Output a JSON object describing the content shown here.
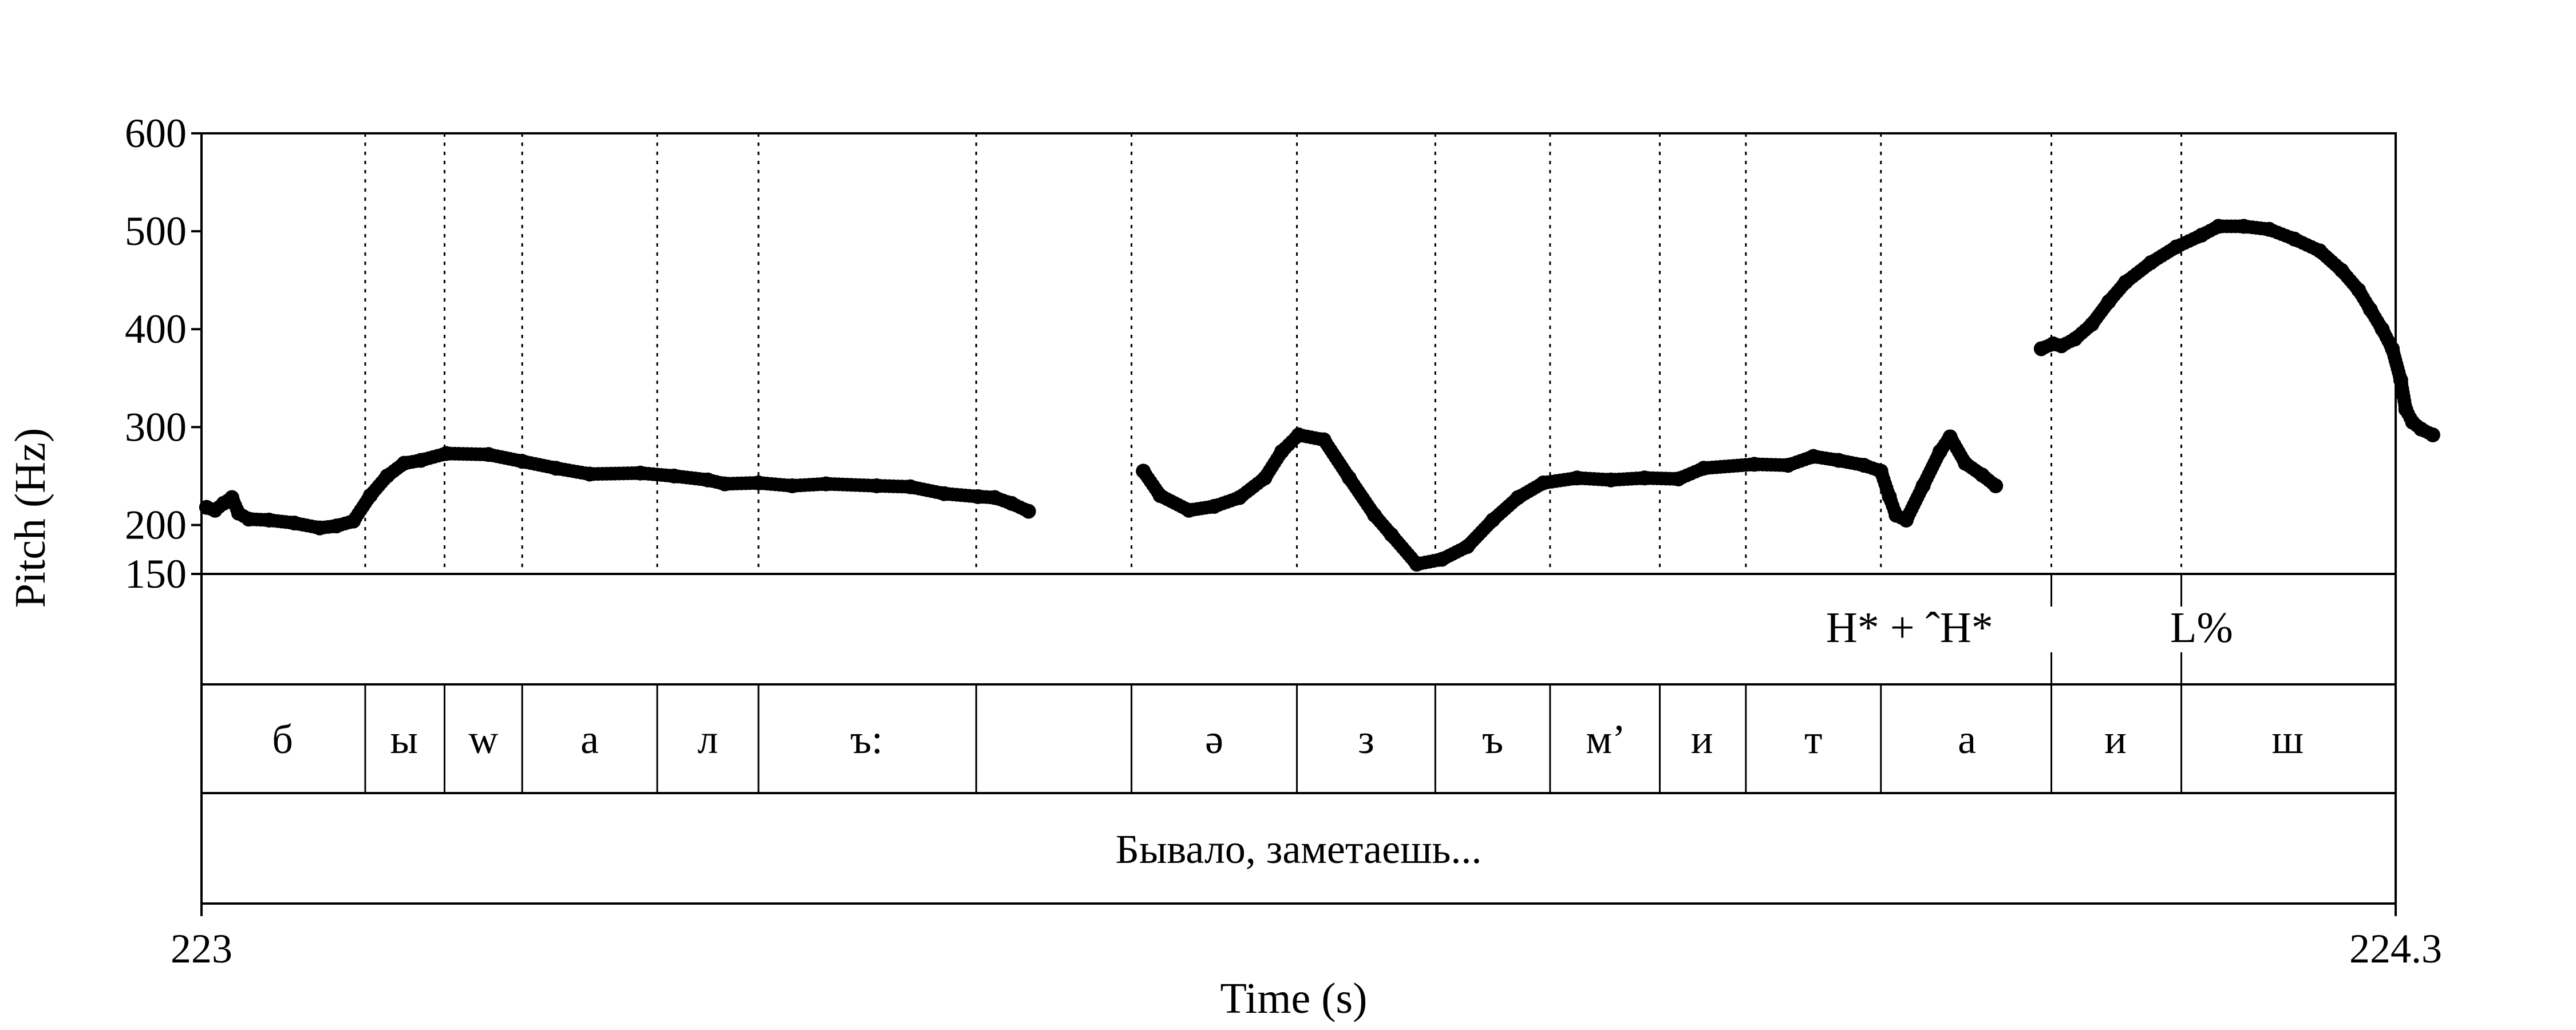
{
  "chart_data": {
    "type": "scatter",
    "title": "",
    "xlabel": "Time (s)",
    "ylabel": "Pitch (Hz)",
    "xlim": [
      223,
      224.3
    ],
    "ylim": [
      150,
      600
    ],
    "x_tick_labels": [
      "223",
      "224.3"
    ],
    "y_ticks": [
      150,
      200,
      300,
      400,
      500,
      600
    ],
    "y_tick_labels": [
      "150",
      "200",
      "300",
      "400",
      "500",
      "600"
    ],
    "grid": "dotted vertical lines at segment boundaries",
    "legend": "none",
    "colors": {
      "points": "#000000",
      "axes": "#000000",
      "background": "#ffffff"
    },
    "series": [
      {
        "values": [
          [
            223.003,
            218
          ],
          [
            223.008,
            215
          ],
          [
            223.013,
            222
          ],
          [
            223.018,
            228
          ],
          [
            223.022,
            212
          ],
          [
            223.028,
            206
          ],
          [
            223.04,
            205
          ],
          [
            223.055,
            202
          ],
          [
            223.07,
            197
          ],
          [
            223.08,
            199
          ],
          [
            223.09,
            204
          ],
          [
            223.1,
            230
          ],
          [
            223.11,
            250
          ],
          [
            223.12,
            263
          ],
          [
            223.13,
            266
          ],
          [
            223.145,
            273
          ],
          [
            223.17,
            272
          ],
          [
            223.19,
            265
          ],
          [
            223.21,
            258
          ],
          [
            223.23,
            252
          ],
          [
            223.26,
            253
          ],
          [
            223.28,
            250
          ],
          [
            223.3,
            246
          ],
          [
            223.31,
            242
          ],
          [
            223.33,
            243
          ],
          [
            223.35,
            240
          ],
          [
            223.37,
            242
          ],
          [
            223.4,
            240
          ],
          [
            223.42,
            239
          ],
          [
            223.44,
            232
          ],
          [
            223.46,
            229
          ],
          [
            223.47,
            228
          ],
          [
            223.48,
            222
          ],
          [
            223.49,
            214
          ]
        ]
      },
      {
        "values": [
          [
            223.558,
            255
          ],
          [
            223.568,
            230
          ],
          [
            223.585,
            215
          ],
          [
            223.6,
            219
          ],
          [
            223.615,
            228
          ],
          [
            223.63,
            248
          ],
          [
            223.64,
            275
          ],
          [
            223.65,
            292
          ],
          [
            223.665,
            287
          ],
          [
            223.68,
            248
          ],
          [
            223.695,
            210
          ],
          [
            223.705,
            190
          ],
          [
            223.72,
            160
          ],
          [
            223.735,
            165
          ],
          [
            223.75,
            178
          ],
          [
            223.765,
            205
          ],
          [
            223.78,
            228
          ],
          [
            223.795,
            243
          ],
          [
            223.815,
            248
          ],
          [
            223.835,
            246
          ],
          [
            223.855,
            248
          ],
          [
            223.875,
            247
          ],
          [
            223.89,
            258
          ],
          [
            223.92,
            262
          ],
          [
            223.94,
            261
          ],
          [
            223.955,
            270
          ],
          [
            223.97,
            266
          ],
          [
            223.985,
            261
          ],
          [
            223.995,
            255
          ],
          [
            224.0,
            229
          ],
          [
            224.004,
            210
          ],
          [
            224.01,
            205
          ],
          [
            224.02,
            240
          ],
          [
            224.03,
            275
          ],
          [
            224.036,
            290
          ],
          [
            224.045,
            263
          ],
          [
            224.055,
            251
          ],
          [
            224.063,
            240
          ]
        ]
      },
      {
        "values": [
          [
            224.09,
            380
          ],
          [
            224.097,
            385
          ],
          [
            224.102,
            383
          ],
          [
            224.11,
            390
          ],
          [
            224.12,
            405
          ],
          [
            224.13,
            428
          ],
          [
            224.14,
            448
          ],
          [
            224.155,
            468
          ],
          [
            224.17,
            484
          ],
          [
            224.185,
            496
          ],
          [
            224.195,
            505
          ],
          [
            224.21,
            505
          ],
          [
            224.225,
            502
          ],
          [
            224.24,
            492
          ],
          [
            224.255,
            480
          ],
          [
            224.268,
            460
          ],
          [
            224.278,
            440
          ],
          [
            224.285,
            420
          ],
          [
            224.292,
            400
          ],
          [
            224.298,
            380
          ],
          [
            224.303,
            348
          ],
          [
            224.306,
            318
          ],
          [
            224.31,
            305
          ],
          [
            224.315,
            298
          ],
          [
            224.322,
            292
          ]
        ]
      }
    ]
  },
  "boundaries": [
    223.097,
    223.144,
    223.19,
    223.27,
    223.33,
    223.459,
    223.551,
    223.649,
    223.731,
    223.799,
    223.864,
    223.915,
    223.995,
    224.096,
    224.173
  ],
  "tiers": {
    "tones": [
      {
        "label": "H* + ˆH*",
        "t": 224.012
      },
      {
        "label": "L%",
        "t": 224.185
      }
    ],
    "segments": [
      {
        "label": "б",
        "t": 223.048
      },
      {
        "label": "ы",
        "t": 223.12
      },
      {
        "label": "w",
        "t": 223.167
      },
      {
        "label": "а",
        "t": 223.23
      },
      {
        "label": "л",
        "t": 223.3
      },
      {
        "label": "ъ:",
        "t": 223.394
      },
      {
        "label": "ə",
        "t": 223.6
      },
      {
        "label": "з",
        "t": 223.69
      },
      {
        "label": "ъ",
        "t": 223.765
      },
      {
        "label": "м’",
        "t": 223.832
      },
      {
        "label": "и",
        "t": 223.889
      },
      {
        "label": "т",
        "t": 223.955
      },
      {
        "label": "а",
        "t": 224.046
      },
      {
        "label": "и",
        "t": 224.134
      },
      {
        "label": "ш",
        "t": 224.236
      }
    ],
    "utterance": {
      "label": "Бывало, заметаешь...",
      "t": 223.65
    }
  }
}
